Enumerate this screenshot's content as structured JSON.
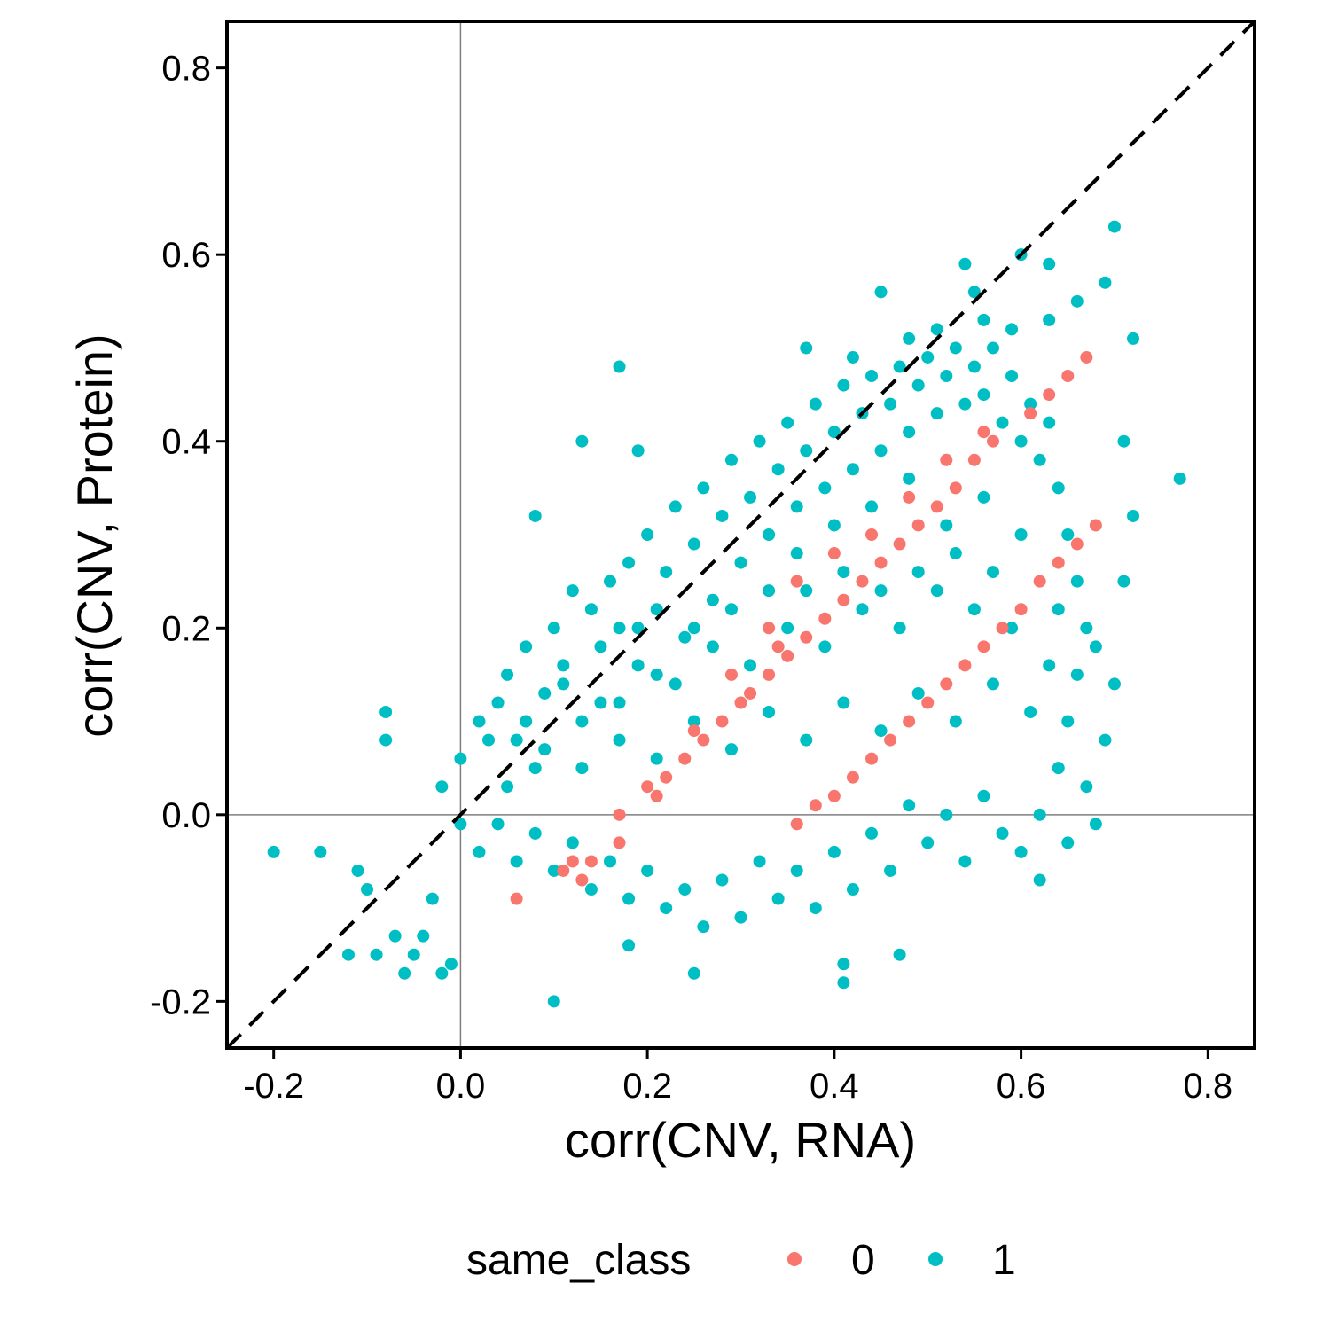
{
  "chart_data": {
    "type": "scatter",
    "xlabel": "corr(CNV, RNA)",
    "ylabel": "corr(CNV, Protein)",
    "xlim": [
      -0.25,
      0.85
    ],
    "ylim": [
      -0.25,
      0.85
    ],
    "x_ticks": [
      -0.2,
      0.0,
      0.2,
      0.4,
      0.6,
      0.8
    ],
    "y_ticks": [
      -0.2,
      0.0,
      0.2,
      0.4,
      0.6,
      0.8
    ],
    "x_tick_labels": [
      "-0.2",
      "0.0",
      "0.2",
      "0.4",
      "0.6",
      "0.8"
    ],
    "y_tick_labels": [
      "-0.2",
      "0.0",
      "0.2",
      "0.4",
      "0.6",
      "0.8"
    ],
    "reference_lines": {
      "diagonal": "y = x (dashed)",
      "horizontal": 0.0,
      "vertical": 0.0
    },
    "grid": false,
    "legend": {
      "title": "same_class",
      "position": "bottom",
      "entries": [
        {
          "label": "0",
          "color": "#F8766D"
        },
        {
          "label": "1",
          "color": "#00BFC4"
        }
      ]
    },
    "series": [
      {
        "name": "0",
        "color": "#F8766D",
        "points": [
          [
            0.06,
            -0.09
          ],
          [
            0.11,
            -0.06
          ],
          [
            0.12,
            -0.05
          ],
          [
            0.13,
            -0.07
          ],
          [
            0.14,
            -0.05
          ],
          [
            0.17,
            -0.03
          ],
          [
            0.17,
            0.0
          ],
          [
            0.2,
            0.03
          ],
          [
            0.21,
            0.02
          ],
          [
            0.22,
            0.04
          ],
          [
            0.24,
            0.06
          ],
          [
            0.26,
            0.08
          ],
          [
            0.28,
            0.1
          ],
          [
            0.3,
            0.12
          ],
          [
            0.31,
            0.13
          ],
          [
            0.33,
            0.15
          ],
          [
            0.35,
            0.17
          ],
          [
            0.37,
            0.19
          ],
          [
            0.39,
            0.21
          ],
          [
            0.41,
            0.23
          ],
          [
            0.43,
            0.25
          ],
          [
            0.45,
            0.27
          ],
          [
            0.47,
            0.29
          ],
          [
            0.49,
            0.31
          ],
          [
            0.51,
            0.33
          ],
          [
            0.53,
            0.35
          ],
          [
            0.55,
            0.38
          ],
          [
            0.57,
            0.4
          ],
          [
            0.61,
            0.43
          ],
          [
            0.63,
            0.45
          ],
          [
            0.65,
            0.47
          ],
          [
            0.67,
            0.49
          ],
          [
            0.36,
            -0.01
          ],
          [
            0.38,
            0.01
          ],
          [
            0.4,
            0.02
          ],
          [
            0.42,
            0.04
          ],
          [
            0.44,
            0.06
          ],
          [
            0.46,
            0.08
          ],
          [
            0.48,
            0.1
          ],
          [
            0.5,
            0.12
          ],
          [
            0.52,
            0.14
          ],
          [
            0.54,
            0.16
          ],
          [
            0.56,
            0.18
          ],
          [
            0.58,
            0.2
          ],
          [
            0.6,
            0.22
          ],
          [
            0.62,
            0.25
          ],
          [
            0.64,
            0.27
          ],
          [
            0.66,
            0.29
          ],
          [
            0.68,
            0.31
          ],
          [
            0.33,
            0.2
          ],
          [
            0.36,
            0.25
          ],
          [
            0.4,
            0.28
          ],
          [
            0.44,
            0.3
          ],
          [
            0.48,
            0.34
          ],
          [
            0.52,
            0.38
          ],
          [
            0.56,
            0.41
          ],
          [
            0.25,
            0.09
          ],
          [
            0.29,
            0.15
          ],
          [
            0.34,
            0.18
          ]
        ]
      },
      {
        "name": "1",
        "color": "#00BFC4",
        "points": [
          [
            -0.2,
            -0.04
          ],
          [
            -0.15,
            -0.04
          ],
          [
            -0.11,
            -0.06
          ],
          [
            -0.12,
            -0.15
          ],
          [
            -0.09,
            -0.15
          ],
          [
            -0.1,
            -0.08
          ],
          [
            -0.08,
            0.11
          ],
          [
            -0.08,
            0.08
          ],
          [
            -0.07,
            -0.13
          ],
          [
            -0.06,
            -0.17
          ],
          [
            -0.05,
            -0.15
          ],
          [
            -0.04,
            -0.13
          ],
          [
            -0.02,
            -0.17
          ],
          [
            -0.01,
            -0.16
          ],
          [
            -0.03,
            -0.09
          ],
          [
            0.1,
            -0.2
          ],
          [
            0.17,
            0.48
          ],
          [
            0.7,
            0.63
          ],
          [
            0.6,
            0.6
          ],
          [
            0.54,
            0.59
          ],
          [
            0.45,
            0.56
          ],
          [
            0.63,
            0.59
          ],
          [
            0.69,
            0.57
          ],
          [
            0.72,
            0.51
          ],
          [
            0.77,
            0.36
          ],
          [
            0.71,
            0.4
          ],
          [
            0.72,
            0.32
          ],
          [
            0.71,
            0.25
          ],
          [
            0.68,
            -0.01
          ],
          [
            0.65,
            -0.03
          ],
          [
            0.62,
            -0.07
          ],
          [
            0.41,
            -0.18
          ],
          [
            0.41,
            -0.16
          ],
          [
            0.47,
            -0.15
          ],
          [
            0.25,
            -0.17
          ],
          [
            0.18,
            -0.14
          ],
          [
            0.13,
            0.4
          ],
          [
            0.19,
            0.39
          ],
          [
            0.08,
            0.32
          ],
          [
            0.37,
            0.5
          ],
          [
            0.42,
            0.49
          ],
          [
            0.48,
            0.51
          ],
          [
            0.51,
            0.52
          ],
          [
            0.56,
            0.53
          ],
          [
            0.59,
            0.52
          ],
          [
            0.63,
            0.53
          ],
          [
            0.66,
            0.55
          ],
          [
            0.55,
            0.56
          ],
          [
            -0.02,
            0.03
          ],
          [
            0.0,
            0.06
          ],
          [
            0.02,
            0.1
          ],
          [
            0.04,
            0.12
          ],
          [
            0.05,
            0.15
          ],
          [
            0.06,
            0.08
          ],
          [
            0.07,
            0.18
          ],
          [
            0.08,
            0.05
          ],
          [
            0.09,
            0.13
          ],
          [
            0.1,
            0.2
          ],
          [
            0.11,
            0.16
          ],
          [
            0.12,
            0.24
          ],
          [
            0.13,
            0.1
          ],
          [
            0.14,
            0.22
          ],
          [
            0.15,
            0.18
          ],
          [
            0.16,
            0.25
          ],
          [
            0.17,
            0.12
          ],
          [
            0.18,
            0.27
          ],
          [
            0.19,
            0.2
          ],
          [
            0.2,
            0.3
          ],
          [
            0.21,
            0.15
          ],
          [
            0.22,
            0.26
          ],
          [
            0.23,
            0.33
          ],
          [
            0.24,
            0.19
          ],
          [
            0.25,
            0.29
          ],
          [
            0.26,
            0.35
          ],
          [
            0.27,
            0.23
          ],
          [
            0.28,
            0.32
          ],
          [
            0.29,
            0.38
          ],
          [
            0.3,
            0.27
          ],
          [
            0.31,
            0.34
          ],
          [
            0.32,
            0.4
          ],
          [
            0.33,
            0.3
          ],
          [
            0.34,
            0.37
          ],
          [
            0.35,
            0.42
          ],
          [
            0.36,
            0.33
          ],
          [
            0.37,
            0.39
          ],
          [
            0.38,
            0.44
          ],
          [
            0.39,
            0.35
          ],
          [
            0.4,
            0.41
          ],
          [
            0.41,
            0.46
          ],
          [
            0.42,
            0.37
          ],
          [
            0.43,
            0.43
          ],
          [
            0.44,
            0.47
          ],
          [
            0.45,
            0.39
          ],
          [
            0.46,
            0.44
          ],
          [
            0.47,
            0.48
          ],
          [
            0.48,
            0.41
          ],
          [
            0.49,
            0.46
          ],
          [
            0.5,
            0.49
          ],
          [
            0.51,
            0.43
          ],
          [
            0.52,
            0.47
          ],
          [
            0.53,
            0.5
          ],
          [
            0.54,
            0.44
          ],
          [
            0.55,
            0.48
          ],
          [
            0.56,
            0.45
          ],
          [
            0.57,
            0.5
          ],
          [
            0.58,
            0.42
          ],
          [
            0.59,
            0.47
          ],
          [
            0.6,
            0.4
          ],
          [
            0.61,
            0.44
          ],
          [
            0.62,
            0.38
          ],
          [
            0.63,
            0.42
          ],
          [
            0.64,
            0.35
          ],
          [
            0.65,
            0.3
          ],
          [
            0.66,
            0.25
          ],
          [
            0.67,
            0.2
          ],
          [
            0.66,
            0.15
          ],
          [
            0.65,
            0.1
          ],
          [
            0.64,
            0.05
          ],
          [
            0.62,
            0.0
          ],
          [
            0.6,
            -0.04
          ],
          [
            0.58,
            -0.02
          ],
          [
            0.56,
            0.02
          ],
          [
            0.54,
            -0.05
          ],
          [
            0.52,
            0.0
          ],
          [
            0.5,
            -0.03
          ],
          [
            0.48,
            0.01
          ],
          [
            0.46,
            -0.06
          ],
          [
            0.44,
            -0.02
          ],
          [
            0.42,
            -0.08
          ],
          [
            0.4,
            -0.04
          ],
          [
            0.38,
            -0.1
          ],
          [
            0.36,
            -0.06
          ],
          [
            0.34,
            -0.09
          ],
          [
            0.32,
            -0.05
          ],
          [
            0.3,
            -0.11
          ],
          [
            0.28,
            -0.07
          ],
          [
            0.26,
            -0.12
          ],
          [
            0.24,
            -0.08
          ],
          [
            0.22,
            -0.1
          ],
          [
            0.2,
            -0.06
          ],
          [
            0.18,
            -0.09
          ],
          [
            0.16,
            -0.05
          ],
          [
            0.14,
            -0.08
          ],
          [
            0.12,
            -0.03
          ],
          [
            0.1,
            -0.06
          ],
          [
            0.08,
            -0.02
          ],
          [
            0.06,
            -0.05
          ],
          [
            0.04,
            -0.01
          ],
          [
            0.02,
            -0.04
          ],
          [
            0.0,
            -0.01
          ],
          [
            0.05,
            0.03
          ],
          [
            0.09,
            0.07
          ],
          [
            0.13,
            0.05
          ],
          [
            0.17,
            0.08
          ],
          [
            0.21,
            0.06
          ],
          [
            0.25,
            0.1
          ],
          [
            0.29,
            0.07
          ],
          [
            0.33,
            0.11
          ],
          [
            0.37,
            0.08
          ],
          [
            0.41,
            0.12
          ],
          [
            0.45,
            0.09
          ],
          [
            0.49,
            0.13
          ],
          [
            0.53,
            0.1
          ],
          [
            0.57,
            0.14
          ],
          [
            0.61,
            0.11
          ],
          [
            0.63,
            0.16
          ],
          [
            0.59,
            0.2
          ],
          [
            0.55,
            0.22
          ],
          [
            0.51,
            0.24
          ],
          [
            0.47,
            0.2
          ],
          [
            0.43,
            0.22
          ],
          [
            0.39,
            0.18
          ],
          [
            0.35,
            0.2
          ],
          [
            0.31,
            0.16
          ],
          [
            0.27,
            0.18
          ],
          [
            0.23,
            0.14
          ],
          [
            0.19,
            0.16
          ],
          [
            0.15,
            0.12
          ],
          [
            0.11,
            0.14
          ],
          [
            0.07,
            0.1
          ],
          [
            0.03,
            0.08
          ],
          [
            0.36,
            0.28
          ],
          [
            0.4,
            0.31
          ],
          [
            0.44,
            0.33
          ],
          [
            0.48,
            0.36
          ],
          [
            0.52,
            0.31
          ],
          [
            0.56,
            0.34
          ],
          [
            0.6,
            0.3
          ],
          [
            0.64,
            0.22
          ],
          [
            0.68,
            0.18
          ],
          [
            0.7,
            0.14
          ],
          [
            0.69,
            0.08
          ],
          [
            0.67,
            0.03
          ],
          [
            0.57,
            0.26
          ],
          [
            0.53,
            0.28
          ],
          [
            0.49,
            0.26
          ],
          [
            0.45,
            0.24
          ],
          [
            0.41,
            0.26
          ],
          [
            0.37,
            0.24
          ],
          [
            0.33,
            0.24
          ],
          [
            0.29,
            0.22
          ],
          [
            0.25,
            0.2
          ],
          [
            0.21,
            0.22
          ],
          [
            0.17,
            0.2
          ]
        ]
      }
    ]
  }
}
